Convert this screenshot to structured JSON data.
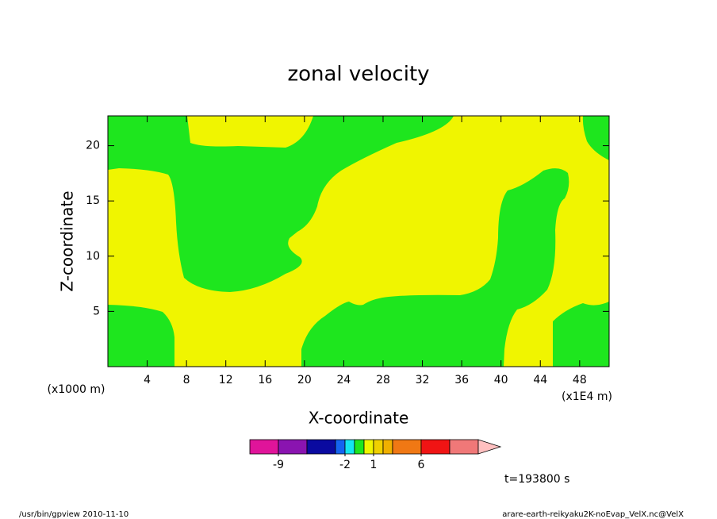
{
  "chart_data": {
    "type": "contour",
    "title": "zonal velocity",
    "x_label": "X-coordinate",
    "y_label": "Z-coordinate",
    "x_unit": "(x1E4 m)",
    "y_unit": "(x1000 m)",
    "time_label": "t=193800 s",
    "footer_left": "/usr/bin/gpview  2010-11-10",
    "footer_right": "arare-earth-reikyaku2K-noEvap_VelX.nc@VelX",
    "xlim": [
      0,
      51
    ],
    "xticks": [
      4,
      8,
      12,
      16,
      20,
      24,
      28,
      32,
      36,
      40,
      44,
      48
    ],
    "ylim": [
      0,
      22.7
    ],
    "yticks": [
      5,
      10,
      15,
      20
    ],
    "background_level": 6,
    "region_level": 5,
    "colorbar": {
      "levels": [
        -12,
        -9,
        -6,
        -3,
        -2,
        -1,
        0,
        1,
        2,
        3,
        6,
        9,
        12
      ],
      "colors": [
        "#e0149a",
        "#8a14b0",
        "#0a0aa0",
        "#1464f0",
        "#14e6f0",
        "#1ee61e",
        "#f0f500",
        "#f0d000",
        "#f0b000",
        "#f07814",
        "#f01414",
        "#f07878"
      ],
      "extend_color": "#ffc0c0",
      "ticks": [
        -9,
        -2,
        1,
        6
      ]
    }
  }
}
